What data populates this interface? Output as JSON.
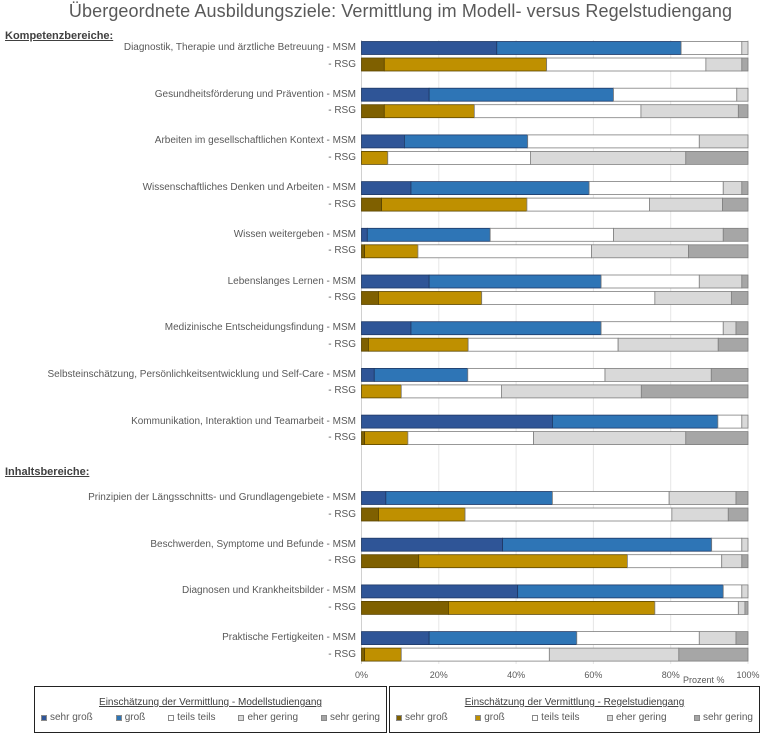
{
  "chart_data": {
    "type": "bar",
    "orientation": "horizontal-stacked-100",
    "title": "Übergeordnete Ausbildungsziele: Vermittlung im Modell- versus Regelstudiengang",
    "xlabel": "Prozent %",
    "xlim": [
      0,
      100
    ],
    "xticks": [
      "0%",
      "20%",
      "40%",
      "60%",
      "80%",
      "100%"
    ],
    "grid": true,
    "sections": [
      {
        "label": "Kompetenzbereiche:",
        "groups": [
          {
            "name": "Diagnostik, Therapie und ärztliche Betreuung",
            "msm_label": "Diagnostik, Therapie und ärztliche Betreuung - MSM",
            "rsg_label": "- RSG",
            "msm": [
              35.0,
              47.7,
              15.7,
              1.6,
              0.0
            ],
            "rsg": [
              5.9,
              42.0,
              41.2,
              9.3,
              1.6
            ]
          },
          {
            "name": "Gesundheitsförderung und Prävention",
            "msm_label": "Gesundheitsförderung und Prävention - MSM",
            "rsg_label": "- RSG",
            "msm": [
              17.5,
              47.7,
              31.9,
              2.9,
              0.0
            ],
            "rsg": [
              5.9,
              23.3,
              43.1,
              25.2,
              2.5
            ]
          },
          {
            "name": "Arbeiten im gesellschaftlichen Kontext",
            "msm_label": "Arbeiten im gesellschaftlichen Kontext - MSM",
            "rsg_label": "- RSG",
            "msm": [
              11.1,
              31.9,
              44.4,
              12.6,
              0.0
            ],
            "rsg": [
              0.0,
              6.8,
              36.9,
              40.2,
              16.1
            ]
          },
          {
            "name": "Wissenschaftliches Denken und Arbeiten",
            "msm_label": "Wissenschaftliches Denken und Arbeiten - MSM",
            "rsg_label": "- RSG",
            "msm": [
              12.8,
              46.1,
              34.7,
              4.8,
              1.6
            ],
            "rsg": [
              5.2,
              37.6,
              31.7,
              18.9,
              6.6
            ]
          },
          {
            "name": "Wissen weitergeben",
            "msm_label": "Wissen weitergeben - MSM",
            "rsg_label": "- RSG",
            "msm": [
              1.5,
              31.8,
              31.9,
              28.4,
              6.4
            ],
            "rsg": [
              0.8,
              13.8,
              44.9,
              25.1,
              15.4
            ]
          },
          {
            "name": "Lebenslanges Lernen",
            "msm_label": "Lebenslanges Lernen - MSM",
            "rsg_label": "- RSG",
            "msm": [
              17.5,
              44.5,
              25.4,
              11.0,
              1.6
            ],
            "rsg": [
              4.4,
              26.7,
              44.8,
              19.8,
              4.3
            ]
          },
          {
            "name": "Medizinische Entscheidungsfindung",
            "msm_label": "Medizinische Entscheidungsfindung - MSM",
            "rsg_label": "- RSG",
            "msm": [
              12.8,
              49.2,
              31.6,
              3.3,
              3.1
            ],
            "rsg": [
              1.8,
              25.8,
              38.8,
              25.9,
              7.7
            ]
          },
          {
            "name": "Selbsteinschätzung, Persönlichkeitsentwicklung und Self-Care",
            "msm_label": "Selbsteinschätzung, Persönlichkeitsentwicklung und Self-Care - MSM",
            "rsg_label": "- RSG",
            "msm": [
              3.3,
              24.2,
              35.5,
              27.5,
              9.5
            ],
            "rsg": [
              0.0,
              10.3,
              25.9,
              36.2,
              27.6
            ]
          },
          {
            "name": "Kommunikation, Interaktion und Teamarbeit",
            "msm_label": "Kommunikation, Interaktion und Teamarbeit - MSM",
            "rsg_label": "- RSG",
            "msm": [
              49.4,
              42.8,
              6.2,
              1.6,
              0.0
            ],
            "rsg": [
              0.8,
              11.2,
              32.5,
              39.4,
              16.1
            ]
          }
        ]
      },
      {
        "label": "Inhaltsbereiche:",
        "groups": [
          {
            "name": "Prinzipien der Längsschnitts- und Grundlagengebiete",
            "msm_label": "Prinzipien der Längsschnitts- und Grundlagengebiete - MSM",
            "rsg_label": "- RSG",
            "msm": [
              6.3,
              43.1,
              30.2,
              17.3,
              3.1
            ],
            "rsg": [
              4.4,
              22.4,
              53.5,
              14.6,
              5.1
            ]
          },
          {
            "name": "Beschwerden, Symptome und Befunde",
            "msm_label": "Beschwerden, Symptome und Befunde - MSM",
            "rsg_label": "- RSG",
            "msm": [
              36.5,
              54.1,
              7.8,
              1.6,
              0.0
            ],
            "rsg": [
              14.8,
              54.0,
              24.4,
              5.2,
              1.6
            ]
          },
          {
            "name": "Diagnosen und Krankheitsbilder",
            "msm_label": "Diagnosen und Krankheitsbilder - MSM",
            "rsg_label": "- RSG",
            "msm": [
              40.4,
              53.2,
              4.8,
              1.6,
              0.0
            ],
            "rsg": [
              22.5,
              53.4,
              21.6,
              1.7,
              0.8
            ]
          },
          {
            "name": "Praktische Fertigkeiten",
            "msm_label": "Praktische Fertigkeiten - MSM",
            "rsg_label": "- RSG",
            "msm": [
              17.5,
              38.2,
              31.7,
              9.5,
              3.1
            ],
            "rsg": [
              0.8,
              9.5,
              38.3,
              33.5,
              17.9
            ]
          }
        ]
      }
    ],
    "categories": [
      "sehr groß",
      "groß",
      "teils teils",
      "eher gering",
      "sehr gering"
    ],
    "colors": {
      "msm": [
        "#2f5597",
        "#2e75b6",
        "#ffffff",
        "#d9d9d9",
        "#a6a6a6"
      ],
      "rsg": [
        "#7f6000",
        "#bf9000",
        "#ffffff",
        "#d9d9d9",
        "#a6a6a6"
      ]
    },
    "legends": [
      {
        "title": "Einschätzung der Vermittlung - Modellstudiengang",
        "series": "msm",
        "items": [
          "sehr groß",
          "groß",
          "teils teils",
          "eher gering",
          "sehr gering"
        ]
      },
      {
        "title": "Einschätzung der Vermittlung - Regelstudiengang",
        "series": "rsg",
        "items": [
          "sehr groß",
          "groß",
          "teils teils",
          "eher gering",
          "sehr gering"
        ]
      }
    ]
  }
}
